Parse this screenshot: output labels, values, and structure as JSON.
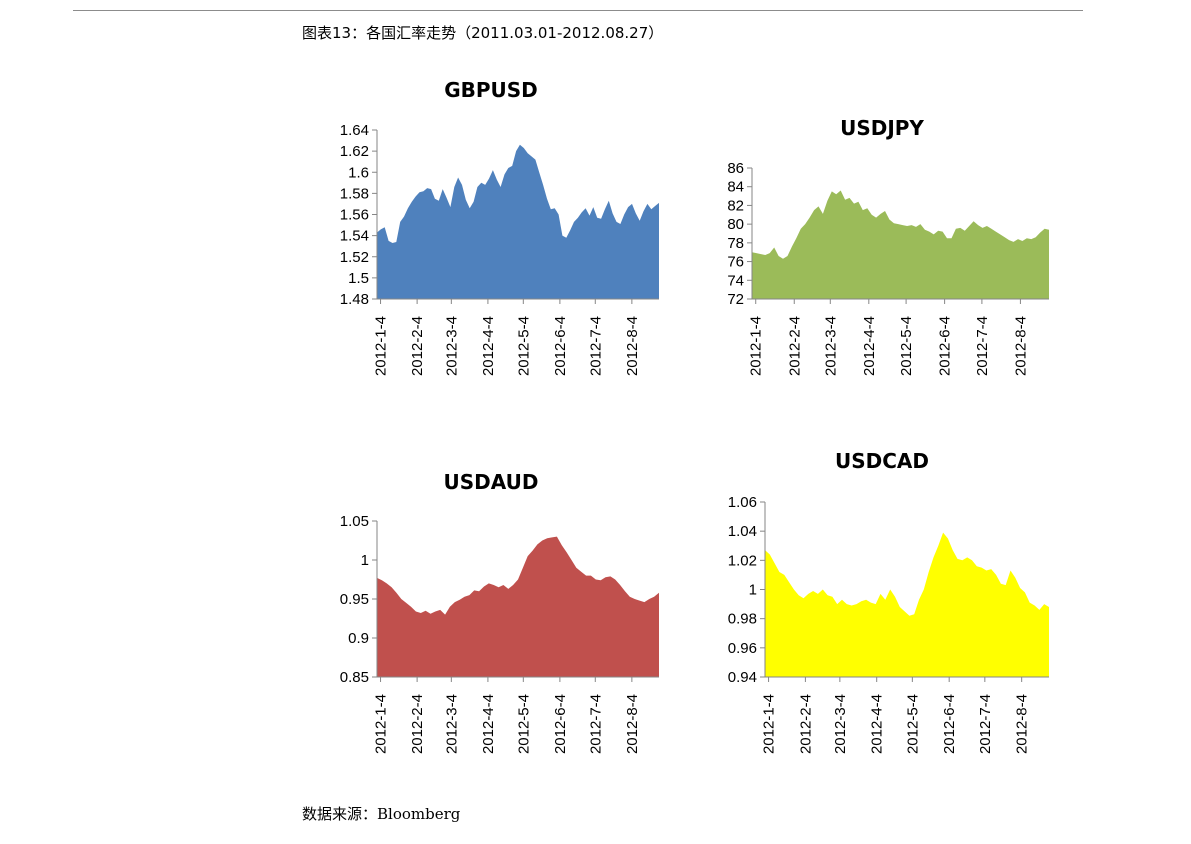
{
  "caption": "图表13：各国汇率走势（2011.03.01-2012.08.27）",
  "source": "数据来源：Bloomberg",
  "chart_data": [
    {
      "type": "area",
      "title": "GBPUSD",
      "color": "#4f81bd",
      "ylim": [
        1.48,
        1.64
      ],
      "yticks": [
        "1.64",
        "1.62",
        "1.6",
        "1.58",
        "1.56",
        "1.54",
        "1.52",
        "1.5",
        "1.48"
      ],
      "xticks": [
        "2012-1-4",
        "2012-2-4",
        "2012-3-4",
        "2012-4-4",
        "2012-5-4",
        "2012-6-4",
        "2012-7-4",
        "2012-8-4"
      ],
      "x_start": "2012-01-01",
      "x_end": "2012-08-27",
      "values": [
        1.543,
        1.546,
        1.548,
        1.535,
        1.533,
        1.534,
        1.553,
        1.558,
        1.566,
        1.572,
        1.577,
        1.581,
        1.582,
        1.585,
        1.584,
        1.575,
        1.573,
        1.584,
        1.576,
        1.567,
        1.586,
        1.595,
        1.588,
        1.574,
        1.566,
        1.572,
        1.586,
        1.59,
        1.588,
        1.594,
        1.602,
        1.593,
        1.586,
        1.598,
        1.604,
        1.606,
        1.62,
        1.626,
        1.623,
        1.618,
        1.615,
        1.612,
        1.6,
        1.588,
        1.575,
        1.565,
        1.566,
        1.56,
        1.54,
        1.538,
        1.545,
        1.553,
        1.557,
        1.562,
        1.566,
        1.559,
        1.567,
        1.557,
        1.556,
        1.565,
        1.573,
        1.561,
        1.553,
        1.551,
        1.56,
        1.567,
        1.57,
        1.561,
        1.554,
        1.563,
        1.57,
        1.565,
        1.568,
        1.571
      ]
    },
    {
      "type": "area",
      "title": "USDJPY",
      "color": "#9bbb59",
      "ylim": [
        72,
        86
      ],
      "yticks": [
        "86",
        "84",
        "82",
        "80",
        "78",
        "76",
        "74",
        "72"
      ],
      "xticks": [
        "2012-1-4",
        "2012-2-4",
        "2012-3-4",
        "2012-4-4",
        "2012-5-4",
        "2012-6-4",
        "2012-7-4",
        "2012-8-4"
      ],
      "x_start": "2012-01-01",
      "x_end": "2012-08-27",
      "values": [
        77.0,
        76.9,
        76.8,
        76.7,
        76.9,
        77.5,
        76.6,
        76.3,
        76.6,
        77.6,
        78.5,
        79.5,
        80.0,
        80.7,
        81.5,
        81.9,
        81.1,
        82.5,
        83.5,
        83.2,
        83.6,
        82.6,
        82.8,
        82.2,
        82.4,
        81.5,
        81.7,
        81.0,
        80.7,
        81.1,
        81.4,
        80.5,
        80.1,
        80.0,
        79.9,
        79.8,
        79.9,
        79.7,
        80.0,
        79.4,
        79.2,
        78.9,
        79.3,
        79.2,
        78.5,
        78.5,
        79.5,
        79.6,
        79.3,
        79.8,
        80.3,
        79.9,
        79.6,
        79.8,
        79.5,
        79.2,
        78.9,
        78.6,
        78.3,
        78.1,
        78.4,
        78.2,
        78.5,
        78.4,
        78.6,
        79.1,
        79.5,
        79.4
      ]
    },
    {
      "type": "area",
      "title": "USDAUD",
      "color": "#c0504d",
      "ylim": [
        0.85,
        1.05
      ],
      "yticks": [
        "1.05",
        "1",
        "0.95",
        "0.9",
        "0.85"
      ],
      "xticks": [
        "2012-1-4",
        "2012-2-4",
        "2012-3-4",
        "2012-4-4",
        "2012-5-4",
        "2012-6-4",
        "2012-7-4",
        "2012-8-4"
      ],
      "x_start": "2012-01-01",
      "x_end": "2012-08-27",
      "values": [
        0.977,
        0.974,
        0.97,
        0.965,
        0.958,
        0.95,
        0.945,
        0.94,
        0.934,
        0.932,
        0.935,
        0.931,
        0.934,
        0.936,
        0.93,
        0.94,
        0.946,
        0.949,
        0.953,
        0.955,
        0.961,
        0.96,
        0.966,
        0.97,
        0.968,
        0.965,
        0.968,
        0.963,
        0.968,
        0.975,
        0.99,
        1.005,
        1.012,
        1.02,
        1.025,
        1.028,
        1.029,
        1.03,
        1.019,
        1.01,
        1.0,
        0.99,
        0.985,
        0.98,
        0.98,
        0.975,
        0.974,
        0.978,
        0.979,
        0.975,
        0.968,
        0.96,
        0.953,
        0.95,
        0.948,
        0.946,
        0.95,
        0.953,
        0.958
      ]
    },
    {
      "type": "area",
      "title": "USDCAD",
      "color": "#ffff00",
      "ylim": [
        0.94,
        1.06
      ],
      "yticks": [
        "1.06",
        "1.04",
        "1.02",
        "1",
        "0.98",
        "0.96",
        "0.94"
      ],
      "xticks": [
        "2012-1-4",
        "2012-2-4",
        "2012-3-4",
        "2012-4-4",
        "2012-5-4",
        "2012-6-4",
        "2012-7-4",
        "2012-8-4"
      ],
      "x_start": "2012-01-01",
      "x_end": "2012-08-27",
      "values": [
        1.027,
        1.024,
        1.018,
        1.012,
        1.01,
        1.005,
        1.0,
        0.996,
        0.994,
        0.997,
        0.999,
        0.997,
        1.0,
        0.996,
        0.995,
        0.99,
        0.993,
        0.99,
        0.989,
        0.99,
        0.992,
        0.993,
        0.991,
        0.99,
        0.997,
        0.993,
        1.0,
        0.995,
        0.988,
        0.985,
        0.982,
        0.983,
        0.993,
        1.0,
        1.012,
        1.022,
        1.03,
        1.039,
        1.035,
        1.027,
        1.021,
        1.02,
        1.022,
        1.02,
        1.016,
        1.015,
        1.013,
        1.014,
        1.01,
        1.004,
        1.003,
        1.013,
        1.008,
        1.001,
        0.998,
        0.991,
        0.989,
        0.986,
        0.99,
        0.988
      ]
    }
  ]
}
